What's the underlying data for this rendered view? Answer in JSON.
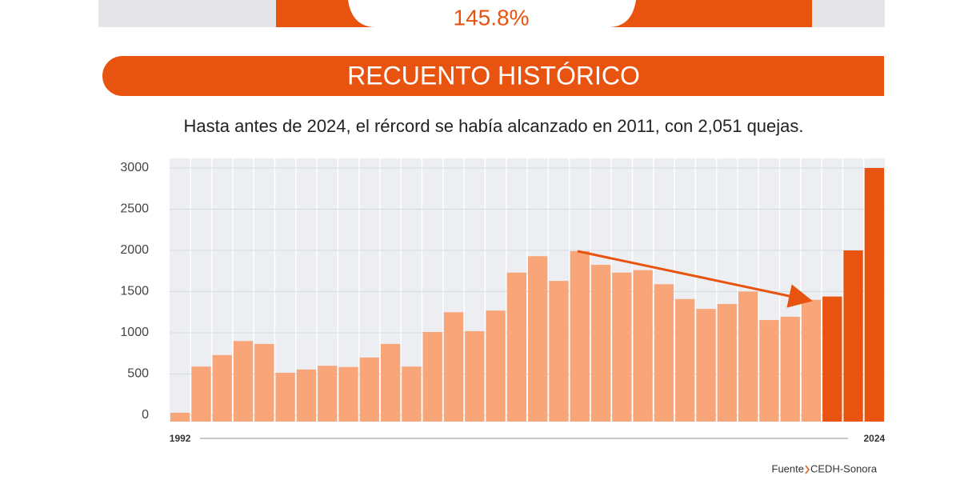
{
  "top_stat": "145.8%",
  "header": "RECUENTO HISTÓRICO",
  "subtitle": "Hasta antes de 2024, el rércord se había alcanzado en 2011, con 2,051 quejas.",
  "source_label": "Fuente",
  "source": "CEDH-Sonora",
  "chart_data": {
    "type": "bar",
    "categories": [
      "1992",
      null,
      null,
      null,
      null,
      null,
      null,
      null,
      null,
      null,
      null,
      null,
      null,
      null,
      null,
      null,
      null,
      null,
      null,
      null,
      null,
      null,
      null,
      null,
      null,
      null,
      null,
      null,
      null,
      null,
      null,
      null,
      null,
      "2024"
    ],
    "values": [
      30,
      590,
      730,
      900,
      865,
      515,
      555,
      600,
      585,
      700,
      865,
      590,
      1010,
      1250,
      1020,
      1270,
      1730,
      1930,
      1630,
      1990,
      1825,
      1730,
      1760,
      1590,
      1410,
      1290,
      1350,
      1500,
      1155,
      1195,
      1400,
      1440,
      2000,
      3000
    ],
    "colors": [
      "#f9a57a",
      "#f9a57a",
      "#f9a57a",
      "#f9a57a",
      "#f9a57a",
      "#f9a57a",
      "#f9a57a",
      "#f9a57a",
      "#f9a57a",
      "#f9a57a",
      "#f9a57a",
      "#f9a57a",
      "#f9a57a",
      "#f9a57a",
      "#f9a57a",
      "#f9a57a",
      "#f9a57a",
      "#f9a57a",
      "#f9a57a",
      "#f9a57a",
      "#f9a57a",
      "#f9a57a",
      "#f9a57a",
      "#f9a57a",
      "#f9a57a",
      "#f9a57a",
      "#f9a57a",
      "#f9a57a",
      "#f9a57a",
      "#f9a57a",
      "#f9a57a",
      "#e8540f",
      "#e8540f",
      "#e8540f"
    ],
    "ylim": [
      0,
      3000
    ],
    "yticks": [
      0,
      500,
      1000,
      1500,
      2000,
      2500,
      3000
    ],
    "grid": true
  }
}
